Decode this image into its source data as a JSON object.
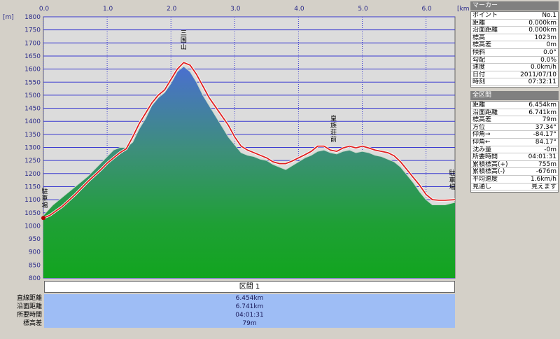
{
  "chart_data": {
    "type": "area",
    "y_unit": "[m]",
    "x_unit": "[km]",
    "x_ticks": [
      "0.0",
      "1.0",
      "2.0",
      "3.0",
      "4.0",
      "5.0",
      "6.0"
    ],
    "y_ticks": [
      "800",
      "850",
      "900",
      "950",
      "1000",
      "1050",
      "1100",
      "1150",
      "1200",
      "1250",
      "1300",
      "1350",
      "1400",
      "1450",
      "1500",
      "1550",
      "1600",
      "1650",
      "1700",
      "1750",
      "1800"
    ],
    "xlim": [
      0,
      6.454
    ],
    "ylim": [
      800,
      1800
    ],
    "grid": true,
    "series": [
      {
        "color": "#2b9a2b",
        "x": [
          0,
          0.15,
          0.3,
          0.5,
          0.7,
          0.9,
          1.0,
          1.1,
          1.2,
          1.3,
          1.4,
          1.5,
          1.6,
          1.7,
          1.8,
          1.9,
          2.0,
          2.1,
          2.2,
          2.3,
          2.4,
          2.5,
          2.6,
          2.7,
          2.8,
          2.9,
          3.0,
          3.1,
          3.2,
          3.3,
          3.4,
          3.5,
          3.6,
          3.7,
          3.8,
          3.9,
          4.0,
          4.1,
          4.2,
          4.3,
          4.4,
          4.5,
          4.6,
          4.7,
          4.8,
          4.9,
          5.0,
          5.1,
          5.2,
          5.3,
          5.4,
          5.5,
          5.6,
          5.7,
          5.8,
          5.9,
          6.0,
          6.1,
          6.2,
          6.3,
          6.454
        ],
        "y": [
          1040,
          1080,
          1110,
          1150,
          1190,
          1240,
          1265,
          1290,
          1300,
          1300,
          1320,
          1370,
          1410,
          1460,
          1490,
          1510,
          1545,
          1590,
          1610,
          1590,
          1550,
          1500,
          1460,
          1420,
          1380,
          1340,
          1310,
          1280,
          1270,
          1265,
          1255,
          1250,
          1235,
          1225,
          1215,
          1230,
          1245,
          1260,
          1270,
          1285,
          1290,
          1280,
          1275,
          1285,
          1290,
          1280,
          1285,
          1280,
          1270,
          1265,
          1255,
          1245,
          1225,
          1195,
          1165,
          1130,
          1100,
          1080,
          1080,
          1080,
          1090
        ]
      },
      {
        "color": "#e02020",
        "x": [
          0,
          0.1,
          0.3,
          0.5,
          0.7,
          0.9,
          1.0,
          1.1,
          1.2,
          1.3,
          1.4,
          1.5,
          1.6,
          1.7,
          1.8,
          1.9,
          2.0,
          2.1,
          2.2,
          2.3,
          2.4,
          2.5,
          2.6,
          2.7,
          2.8,
          2.9,
          3.0,
          3.1,
          3.2,
          3.3,
          3.4,
          3.5,
          3.6,
          3.7,
          3.8,
          3.9,
          4.0,
          4.1,
          4.2,
          4.3,
          4.4,
          4.5,
          4.6,
          4.7,
          4.8,
          4.9,
          5.0,
          5.1,
          5.2,
          5.3,
          5.4,
          5.5,
          5.6,
          5.7,
          5.8,
          5.9,
          6.0,
          6.1,
          6.2,
          6.3,
          6.454
        ],
        "y": [
          1030,
          1040,
          1075,
          1120,
          1170,
          1215,
          1240,
          1260,
          1280,
          1295,
          1340,
          1390,
          1430,
          1470,
          1500,
          1520,
          1560,
          1600,
          1625,
          1615,
          1580,
          1535,
          1490,
          1455,
          1420,
          1385,
          1340,
          1305,
          1290,
          1280,
          1270,
          1260,
          1245,
          1238,
          1238,
          1248,
          1260,
          1272,
          1285,
          1305,
          1305,
          1290,
          1285,
          1298,
          1305,
          1298,
          1305,
          1298,
          1290,
          1285,
          1280,
          1268,
          1245,
          1215,
          1185,
          1155,
          1120,
          1100,
          1098,
          1098,
          1100
        ]
      }
    ],
    "annotations": [
      "三国山",
      "皇族荘前",
      "駐車場",
      "駐車場"
    ]
  },
  "marker_panel": {
    "title": "マーカー",
    "rows": [
      {
        "k": "ポイント",
        "v": "No.1"
      },
      {
        "k": "距離",
        "v": "0.000km"
      },
      {
        "k": "沿面距離",
        "v": "0.000km"
      },
      {
        "k": "標高",
        "v": "1023m"
      },
      {
        "k": "標高差",
        "v": "0m"
      },
      {
        "k": "傾斜",
        "v": "0.0°"
      },
      {
        "k": "勾配",
        "v": "0.0%"
      },
      {
        "k": "速度",
        "v": "0.0km/h"
      },
      {
        "k": "日付",
        "v": "2011/07/10"
      },
      {
        "k": "時刻",
        "v": "07:32:11"
      }
    ]
  },
  "all_panel": {
    "title": "全区間",
    "rows": [
      {
        "k": "距離",
        "v": "6.454km"
      },
      {
        "k": "沿面距離",
        "v": "6.741km"
      },
      {
        "k": "標高差",
        "v": "79m"
      },
      {
        "k": "方位",
        "v": "37.34°"
      },
      {
        "k": "仰角→",
        "v": "-84.17°"
      },
      {
        "k": "仰角←",
        "v": "84.17°"
      },
      {
        "k": "沈み量",
        "v": "-0m"
      },
      {
        "k": "所要時間",
        "v": "04:01:31"
      },
      {
        "k": "累積標高(+)",
        "v": "755m"
      },
      {
        "k": "累積標高(-)",
        "v": "-676m"
      },
      {
        "k": "平均速度",
        "v": "1.6km/h"
      },
      {
        "k": "見通し",
        "v": "見えます"
      }
    ]
  },
  "section": {
    "header": "区間 1",
    "rows": [
      {
        "label": "直線距離",
        "value": "6.454km"
      },
      {
        "label": "沿面距離",
        "value": "6.741km"
      },
      {
        "label": "所要時間",
        "value": "04:01:31"
      },
      {
        "label": "標高差",
        "value": "79m"
      }
    ]
  }
}
